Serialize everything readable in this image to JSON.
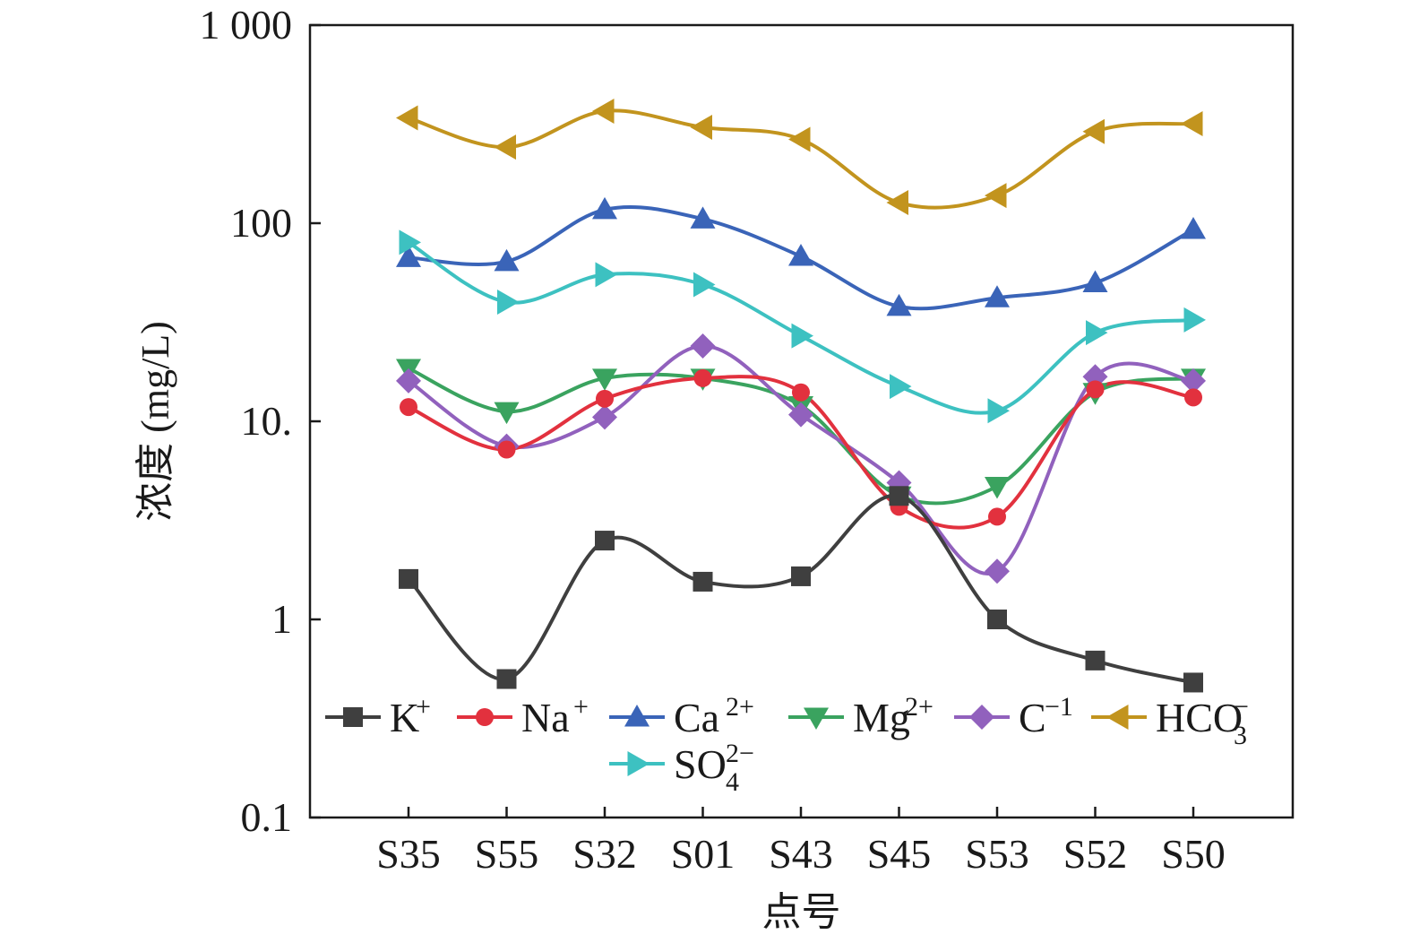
{
  "chart_data": {
    "type": "line",
    "title": "",
    "xlabel": "点号",
    "ylabel": "浓度 (mg/L)",
    "yscale": "log",
    "ylim": [
      0.1,
      1000
    ],
    "grid": false,
    "legend": "inside-lower",
    "categories": [
      "S35",
      "S55",
      "S32",
      "S01",
      "S43",
      "S45",
      "S53",
      "S52",
      "S50"
    ],
    "y_ticks": [
      {
        "value": 0.1,
        "label": "0.1"
      },
      {
        "value": 1,
        "label": "1"
      },
      {
        "value": 10,
        "label": "10."
      },
      {
        "value": 100,
        "label": "100"
      },
      {
        "value": 1000,
        "label": "1 000"
      }
    ],
    "series": [
      {
        "name": "K",
        "sup": "+",
        "sub": "",
        "color": "#3f3f3f",
        "marker": "square",
        "values": [
          1.6,
          0.5,
          2.5,
          1.55,
          1.65,
          4.2,
          1.0,
          0.62,
          0.48
        ]
      },
      {
        "name": "Na",
        "sup": "+",
        "sub": "",
        "color": "#e2313e",
        "marker": "circle",
        "values": [
          11.8,
          7.2,
          13.0,
          16.5,
          14.0,
          3.7,
          3.3,
          14.5,
          13.2
        ]
      },
      {
        "name": "Ca",
        "sup": "2+",
        "sub": "",
        "color": "#3a64b8",
        "marker": "triangle-up",
        "values": [
          67,
          64,
          117,
          105,
          68,
          38,
          42,
          50,
          93
        ]
      },
      {
        "name": "Mg",
        "sup": "2+",
        "sub": "",
        "color": "#3aa35f",
        "marker": "triangle-down",
        "values": [
          18.5,
          11.2,
          16.5,
          16.5,
          12.0,
          4.2,
          4.7,
          14.0,
          16.5
        ]
      },
      {
        "name": "C",
        "sup": "−1",
        "sub": "",
        "color": "#9161bd",
        "marker": "diamond",
        "values": [
          16.0,
          7.5,
          10.5,
          24.0,
          10.8,
          4.9,
          1.75,
          16.8,
          16.0
        ]
      },
      {
        "name": "HCO",
        "sup": "−",
        "sub": "3",
        "color": "#c2941e",
        "marker": "triangle-left",
        "values": [
          340,
          242,
          368,
          305,
          265,
          127,
          138,
          290,
          318
        ]
      },
      {
        "name": "SO",
        "sup": "2−",
        "sub": "4",
        "color": "#3dc1c1",
        "marker": "triangle-right",
        "values": [
          80,
          40,
          55,
          49,
          27,
          15,
          11.3,
          28,
          32.5
        ]
      }
    ]
  }
}
